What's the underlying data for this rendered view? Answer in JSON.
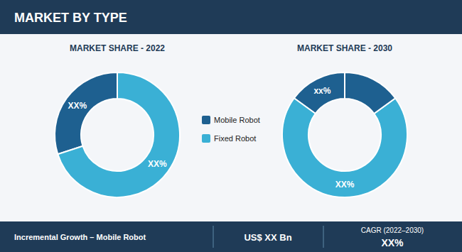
{
  "chart_data": [
    {
      "type": "pie",
      "title": "MARKET BY TYPE",
      "subtitle": "MARKET SHARE - 2022",
      "categories": [
        "Mobile Robot",
        "Fixed Robot"
      ],
      "values": [
        30,
        70
      ],
      "value_labels": [
        "XX%",
        "XX%"
      ],
      "colors": [
        "#1e6090",
        "#3ab0d5"
      ],
      "data_labels": true,
      "annotations": [
        "Incremental Growth – Mobile Robot",
        "US$ XX Bn",
        "CAGR (2022–2030)",
        "XX%"
      ]
    },
    {
      "type": "pie",
      "subtitle": "MARKET SHARE - 2030",
      "values": [
        15,
        70,
        15
      ],
      "value_labels": [
        "xx%",
        "XX%",
        null
      ],
      "colors": [
        "#1e6090",
        "#3ab0d5",
        "#1e6090"
      ],
      "data_labels": true
    }
  ]
}
